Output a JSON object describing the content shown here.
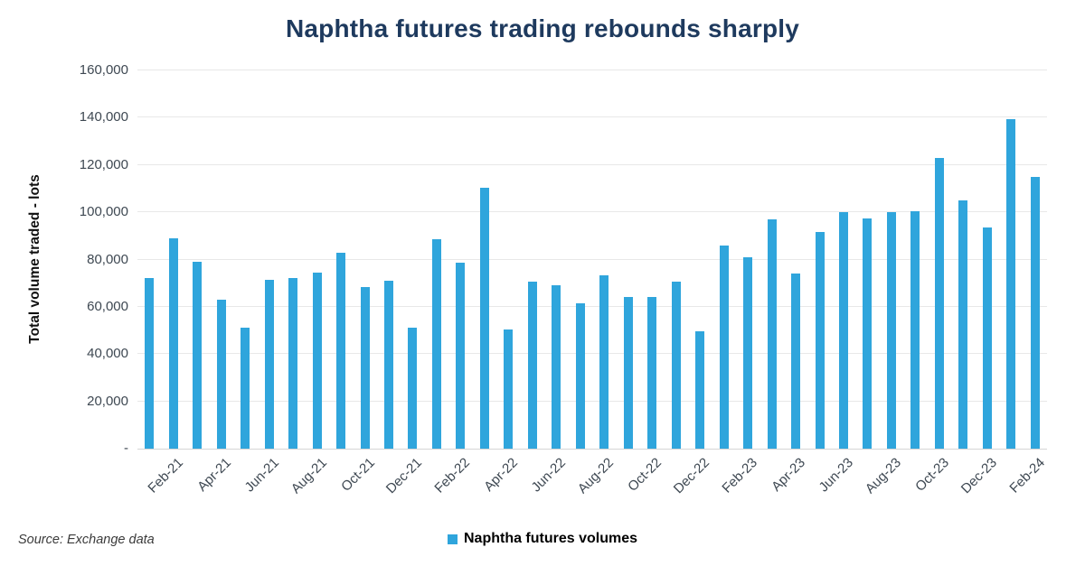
{
  "footer": {
    "source": "Source: Exchange data"
  },
  "colors": {
    "bar": "#2fa5dc",
    "title": "#1e3a5e",
    "tick_label": "#3e4852",
    "gridline": "#e8e8e8",
    "baseline": "#d5d5d5"
  },
  "chart_data": {
    "type": "bar",
    "title": "Naphtha futures trading rebounds sharply",
    "xlabel": "",
    "ylabel": "Total volume traded - lots",
    "ylim": [
      0,
      160000
    ],
    "ytick_step": 20000,
    "ytick_labels": [
      "-",
      "20,000",
      "40,000",
      "60,000",
      "80,000",
      "100,000",
      "120,000",
      "140,000",
      "160,000"
    ],
    "grid": true,
    "legend_position": "bottom-center",
    "series": [
      {
        "name": "Naphtha futures volumes"
      }
    ],
    "categories": [
      "Jan-21",
      "Feb-21",
      "Mar-21",
      "Apr-21",
      "May-21",
      "Jun-21",
      "Jul-21",
      "Aug-21",
      "Sep-21",
      "Oct-21",
      "Nov-21",
      "Dec-21",
      "Jan-22",
      "Feb-22",
      "Mar-22",
      "Apr-22",
      "May-22",
      "Jun-22",
      "Jul-22",
      "Aug-22",
      "Sep-22",
      "Oct-22",
      "Nov-22",
      "Dec-22",
      "Jan-23",
      "Feb-23",
      "Mar-23",
      "Apr-23",
      "May-23",
      "Jun-23",
      "Jul-23",
      "Aug-23",
      "Sep-23",
      "Oct-23",
      "Nov-23",
      "Dec-23",
      "Jan-24",
      "Feb-24"
    ],
    "values": [
      72000,
      89000,
      79000,
      63000,
      51000,
      71500,
      72000,
      74500,
      83000,
      68500,
      71000,
      51000,
      88500,
      78500,
      110500,
      50500,
      70500,
      69000,
      61500,
      73500,
      64000,
      64000,
      70500,
      49500,
      86000,
      81000,
      97000,
      74000,
      91500,
      100000,
      97500,
      100000,
      100500,
      123000,
      105000,
      93500,
      139500,
      115000
    ],
    "xtick_labels_shown": [
      "Feb-21",
      "Apr-21",
      "Jun-21",
      "Aug-21",
      "Oct-21",
      "Dec-21",
      "Feb-22",
      "Apr-22",
      "Jun-22",
      "Aug-22",
      "Oct-22",
      "Dec-22",
      "Feb-23",
      "Apr-23",
      "Jun-23",
      "Aug-23",
      "Oct-23",
      "Dec-23",
      "Feb-24"
    ]
  }
}
